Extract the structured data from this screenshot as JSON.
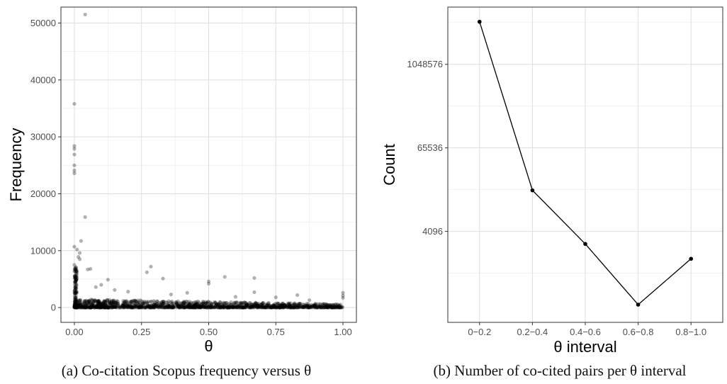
{
  "chart_data": [
    {
      "type": "scatter",
      "xlabel": "θ",
      "ylabel": "Frequency",
      "xlim": [
        -0.05,
        1.05
      ],
      "ylim": [
        -2600,
        52800
      ],
      "x_ticks": [
        "0.00",
        "0.25",
        "0.50",
        "0.75",
        "1.00"
      ],
      "y_ticks": [
        "0",
        "10000",
        "20000",
        "30000",
        "40000",
        "50000"
      ],
      "grid": true,
      "point_color": "#000000",
      "point_alpha": 0.3,
      "points": [
        {
          "x": 0.04,
          "y": 51500
        },
        {
          "x": 0.0,
          "y": 35800
        },
        {
          "x": 0.0,
          "y": 28400
        },
        {
          "x": 0.0,
          "y": 27900
        },
        {
          "x": 0.0,
          "y": 26900
        },
        {
          "x": 0.0,
          "y": 25000
        },
        {
          "x": 0.0,
          "y": 24100
        },
        {
          "x": 0.0,
          "y": 23600
        },
        {
          "x": 0.04,
          "y": 15900
        },
        {
          "x": 0.025,
          "y": 11700
        },
        {
          "x": 0.0,
          "y": 10700
        },
        {
          "x": 0.01,
          "y": 10200
        },
        {
          "x": 0.02,
          "y": 9600
        },
        {
          "x": 0.015,
          "y": 8900
        },
        {
          "x": 0.02,
          "y": 8500
        },
        {
          "x": 0.0,
          "y": 7500
        },
        {
          "x": 0.005,
          "y": 7100
        },
        {
          "x": 0.06,
          "y": 6800
        },
        {
          "x": 0.05,
          "y": 6700
        },
        {
          "x": 0.285,
          "y": 7200
        },
        {
          "x": 0.27,
          "y": 6200
        },
        {
          "x": 0.33,
          "y": 5100
        },
        {
          "x": 0.56,
          "y": 5400
        },
        {
          "x": 0.67,
          "y": 5200
        },
        {
          "x": 0.5,
          "y": 4600
        },
        {
          "x": 0.5,
          "y": 4200
        },
        {
          "x": 0.125,
          "y": 4900
        },
        {
          "x": 0.1,
          "y": 4000
        },
        {
          "x": 0.08,
          "y": 3600
        },
        {
          "x": 0.15,
          "y": 3100
        },
        {
          "x": 0.2,
          "y": 2800
        },
        {
          "x": 0.36,
          "y": 2300
        },
        {
          "x": 0.42,
          "y": 2600
        },
        {
          "x": 0.67,
          "y": 2700
        },
        {
          "x": 0.6,
          "y": 1900
        },
        {
          "x": 0.75,
          "y": 1800
        },
        {
          "x": 0.83,
          "y": 2200
        },
        {
          "x": 0.875,
          "y": 1300
        },
        {
          "x": 1.0,
          "y": 2600
        },
        {
          "x": 1.0,
          "y": 2100
        },
        {
          "x": 1.0,
          "y": 1700
        },
        {
          "x": 0.93,
          "y": 300
        }
      ],
      "dense_band": {
        "x_range": [
          0.0,
          1.0
        ],
        "y_range": [
          0,
          1500
        ],
        "points": 1400
      },
      "dense_column_x0": {
        "x": 0.0,
        "y_range": [
          0,
          7000
        ],
        "points": 120
      }
    },
    {
      "type": "line",
      "xlabel": "θ interval",
      "ylabel": "Count",
      "categories": [
        "0−0.2",
        "0.2−0.4",
        "0.4−0.6",
        "0.6−0.8",
        "0.8−1.0"
      ],
      "values": [
        4300000,
        16000,
        2700,
        360,
        1650
      ],
      "y_scale": "log",
      "ylim": [
        200,
        7000000
      ],
      "y_ticks": [
        4096,
        65536,
        1048576
      ],
      "y_tick_labels": [
        "4096",
        "65536",
        "1048576"
      ],
      "grid": true,
      "line_color": "#000000"
    }
  ],
  "captions": {
    "a": "(a) Co-citation Scopus frequency versus θ",
    "b": "(b) Number of co-cited pairs per θ interval"
  }
}
